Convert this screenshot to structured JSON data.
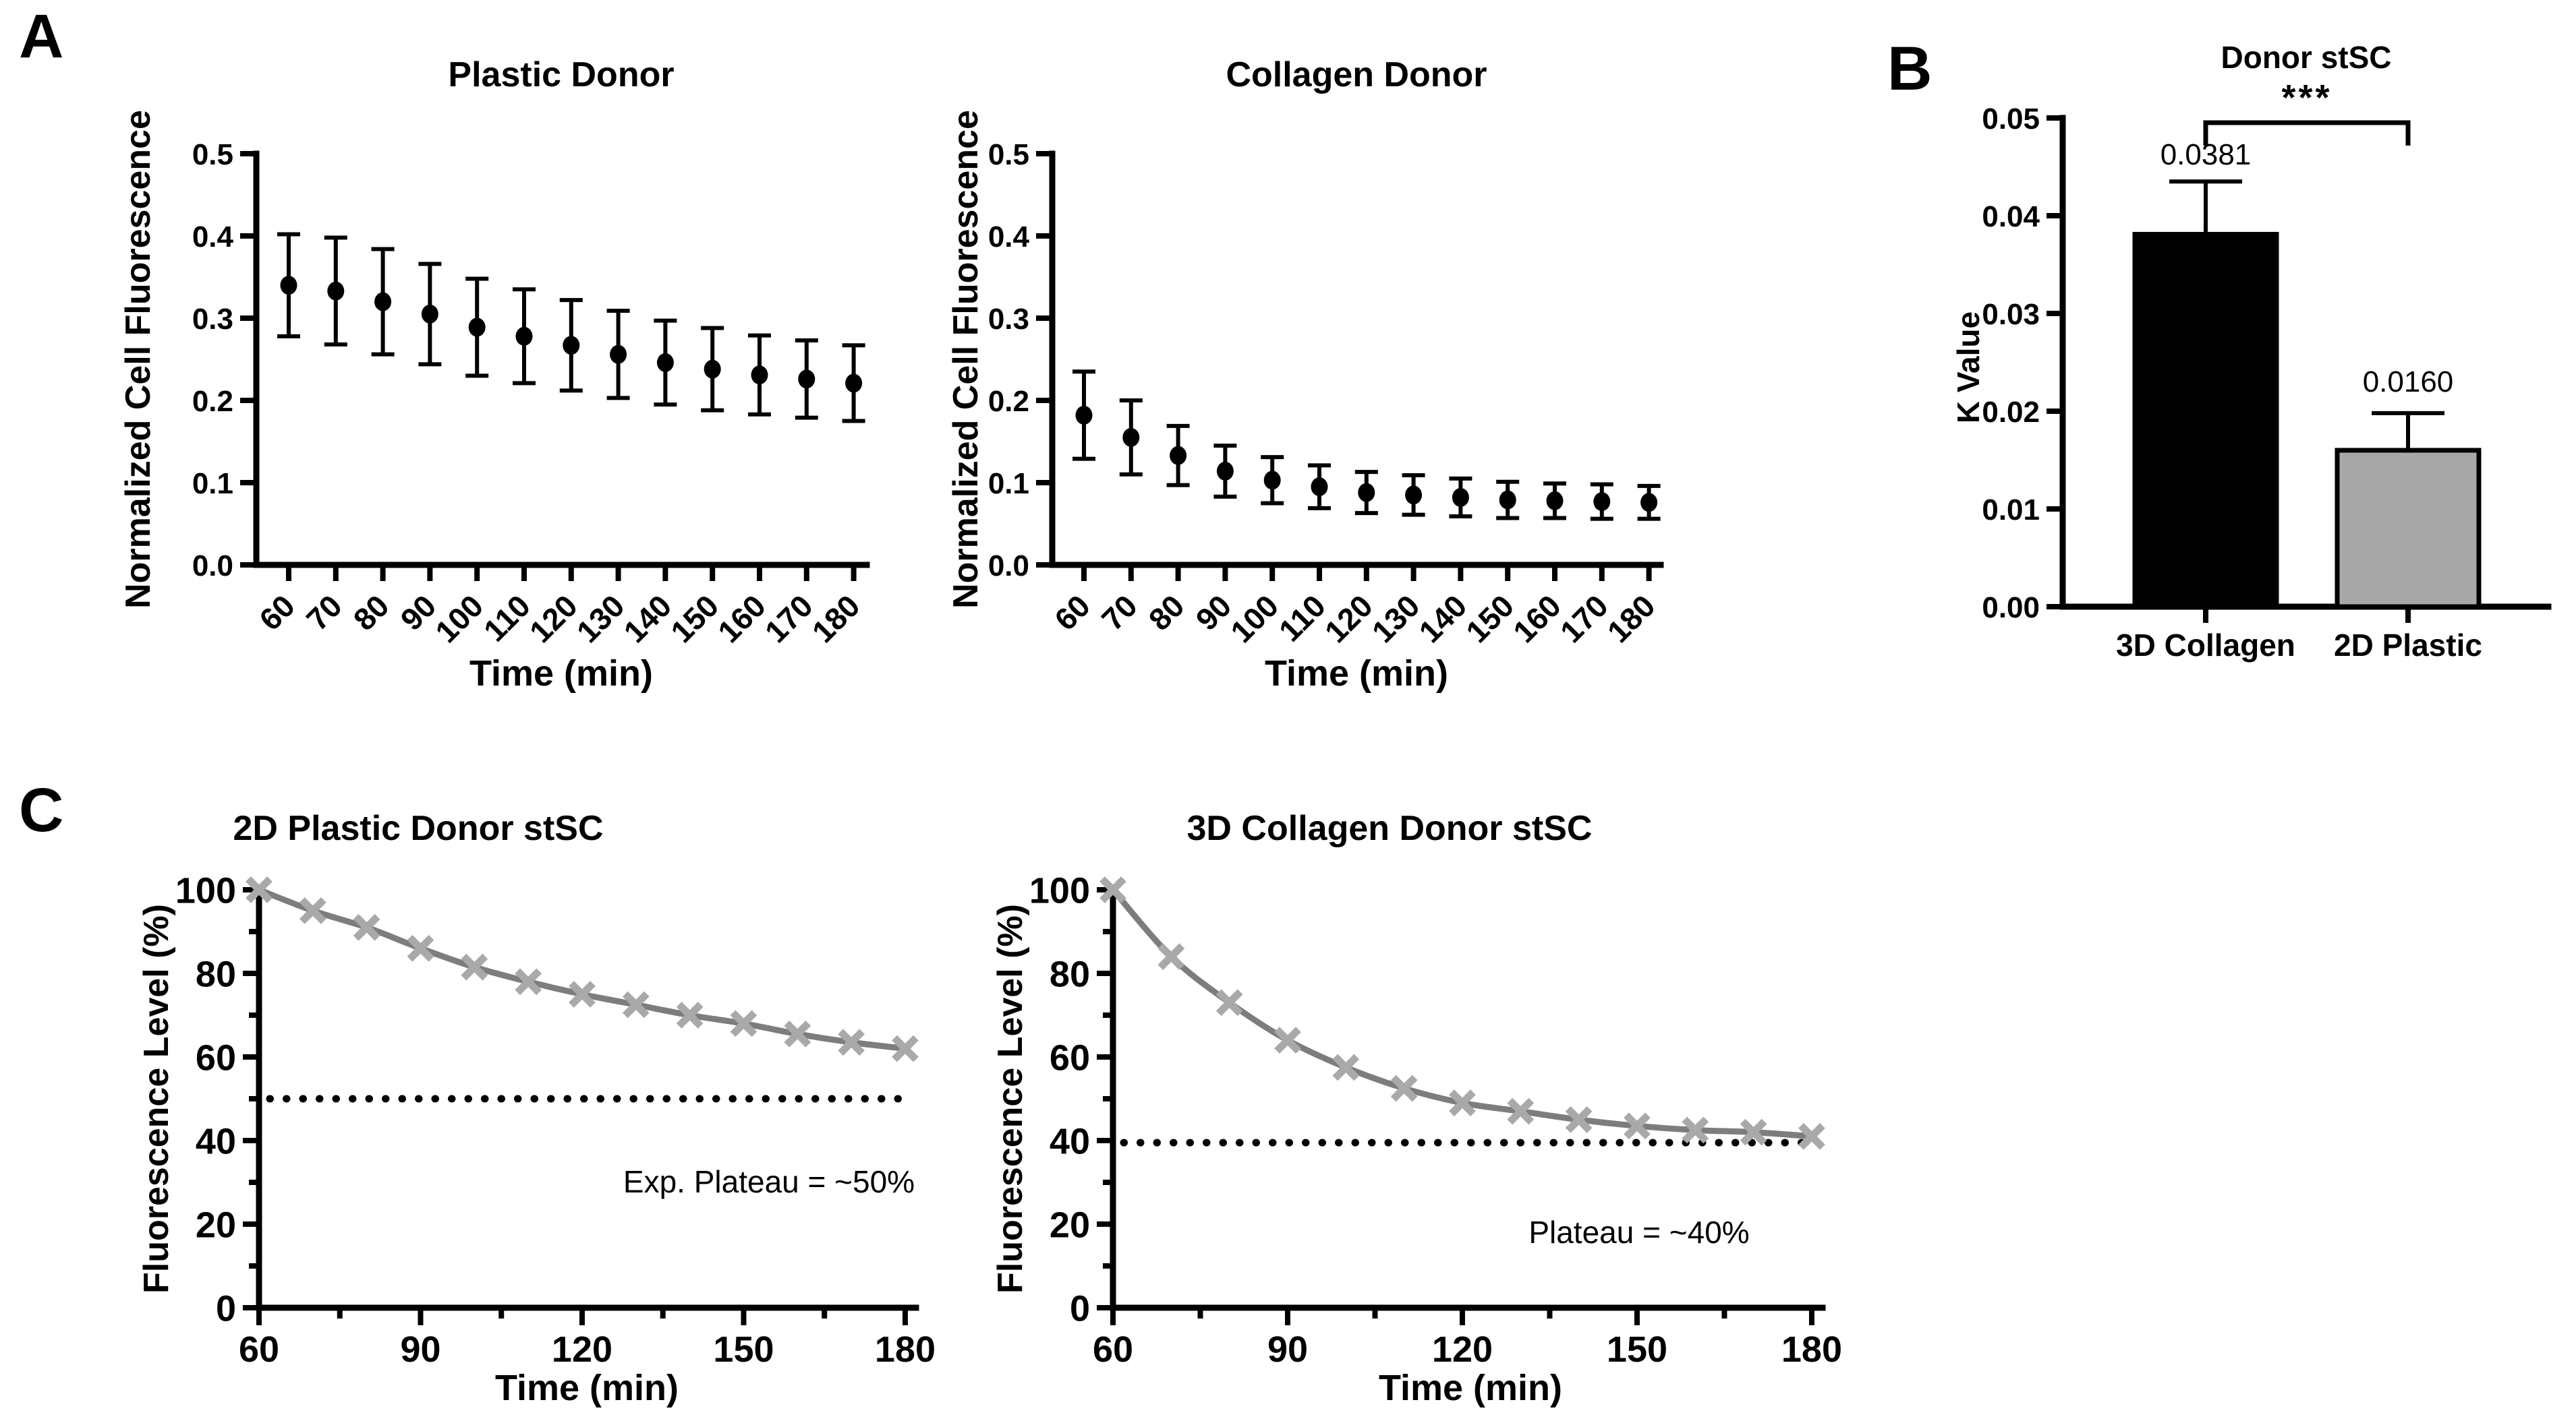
{
  "figure": {
    "panel_labels": {
      "a": "A",
      "b": "B",
      "c": "C"
    }
  },
  "chart_data": [
    {
      "id": "plastic_donor",
      "type": "scatter",
      "title": "Plastic Donor",
      "xlabel": "Time (min)",
      "ylabel": "Normalized Cell Fluorescence",
      "x": [
        60,
        70,
        80,
        90,
        100,
        110,
        120,
        130,
        140,
        150,
        160,
        170,
        180
      ],
      "y": [
        0.34,
        0.333,
        0.32,
        0.305,
        0.289,
        0.278,
        0.267,
        0.256,
        0.246,
        0.238,
        0.231,
        0.226,
        0.221
      ],
      "yerr": [
        0.062,
        0.065,
        0.064,
        0.061,
        0.059,
        0.057,
        0.055,
        0.053,
        0.051,
        0.05,
        0.048,
        0.047,
        0.046
      ],
      "ylim": [
        0.0,
        0.5
      ],
      "yticks": [
        0.0,
        0.1,
        0.2,
        0.3,
        0.4,
        0.5
      ],
      "ytick_labels": [
        "0.0",
        "0.1",
        "0.2",
        "0.3",
        "0.4",
        "0.5"
      ],
      "xtick_labels": [
        "60",
        "70",
        "80",
        "90",
        "100",
        "110",
        "120",
        "130",
        "140",
        "150",
        "160",
        "170",
        "180"
      ],
      "marker": "filled-circle",
      "color": "#000000"
    },
    {
      "id": "collagen_donor",
      "type": "scatter",
      "title": "Collagen Donor",
      "xlabel": "Time (min)",
      "ylabel": "Normalized Cell Fluorescence",
      "x": [
        60,
        70,
        80,
        90,
        100,
        110,
        120,
        130,
        140,
        150,
        160,
        170,
        180
      ],
      "y": [
        0.182,
        0.155,
        0.133,
        0.114,
        0.103,
        0.095,
        0.088,
        0.085,
        0.082,
        0.079,
        0.078,
        0.077,
        0.076
      ],
      "yerr": [
        0.053,
        0.045,
        0.036,
        0.031,
        0.028,
        0.026,
        0.025,
        0.024,
        0.023,
        0.022,
        0.021,
        0.021,
        0.02
      ],
      "ylim": [
        0.0,
        0.5
      ],
      "yticks": [
        0.0,
        0.1,
        0.2,
        0.3,
        0.4,
        0.5
      ],
      "ytick_labels": [
        "0.0",
        "0.1",
        "0.2",
        "0.3",
        "0.4",
        "0.5"
      ],
      "xtick_labels": [
        "60",
        "70",
        "80",
        "90",
        "100",
        "110",
        "120",
        "130",
        "140",
        "150",
        "160",
        "170",
        "180"
      ],
      "marker": "filled-circle",
      "color": "#000000"
    },
    {
      "id": "donor_stsc",
      "type": "bar",
      "title": "Donor stSC",
      "ylabel": "K Value",
      "categories": [
        "3D Collagen",
        "2D Plastic"
      ],
      "values": [
        0.0381,
        0.016
      ],
      "errors_upper": [
        0.0054,
        0.0038
      ],
      "value_labels": [
        "0.0381",
        "0.0160"
      ],
      "significance": "***",
      "bar_colors": [
        "#000000",
        "#a8a8a8"
      ],
      "ylim": [
        0.0,
        0.05
      ],
      "yticks": [
        0.0,
        0.01,
        0.02,
        0.03,
        0.04,
        0.05
      ],
      "ytick_labels": [
        "0.00",
        "0.01",
        "0.02",
        "0.03",
        "0.04",
        "0.05"
      ]
    },
    {
      "id": "plastic_decay",
      "type": "line",
      "title": "2D Plastic Donor stSC",
      "xlabel": "Time (min)",
      "ylabel": "Fluorescence Level (%)",
      "x": [
        60,
        70,
        80,
        90,
        100,
        110,
        120,
        130,
        140,
        150,
        160,
        170,
        180
      ],
      "y": [
        100,
        95,
        91,
        86,
        81.5,
        78,
        75,
        72.5,
        70,
        68,
        65.5,
        63.5,
        62
      ],
      "plateau_line": 50,
      "annotation": "Exp. Plateau = ~50%",
      "ylim": [
        0,
        100
      ],
      "yticks": [
        0,
        20,
        40,
        60,
        80,
        100
      ],
      "ytick_labels": [
        "0",
        "20",
        "40",
        "60",
        "80",
        "100"
      ],
      "yticks_minor": [
        10,
        30,
        50,
        70,
        90
      ],
      "xticks_major": [
        60,
        90,
        120,
        150,
        180
      ],
      "xtick_labels": [
        "60",
        "90",
        "120",
        "150",
        "180"
      ],
      "xticks_minor": [
        75,
        105,
        135,
        165
      ],
      "line_color": "#7d7d7d",
      "marker": "x",
      "marker_color": "#a9a9a9",
      "plateau_style": "dotted-black"
    },
    {
      "id": "collagen_decay",
      "type": "line",
      "title": "3D Collagen Donor stSC",
      "xlabel": "Time (min)",
      "ylabel": "Fluorescence Level (%)",
      "x": [
        60,
        70,
        80,
        90,
        100,
        110,
        120,
        130,
        140,
        150,
        160,
        170,
        180
      ],
      "y": [
        100,
        84,
        73,
        64,
        57.5,
        52.5,
        49,
        47,
        45,
        43.5,
        42.5,
        42,
        41
      ],
      "plateau_line": 39.5,
      "annotation": "Plateau = ~40%",
      "ylim": [
        0,
        100
      ],
      "yticks": [
        0,
        20,
        40,
        60,
        80,
        100
      ],
      "ytick_labels": [
        "0",
        "20",
        "40",
        "60",
        "80",
        "100"
      ],
      "yticks_minor": [
        10,
        30,
        50,
        70,
        90
      ],
      "xticks_major": [
        60,
        90,
        120,
        150,
        180
      ],
      "xtick_labels": [
        "60",
        "90",
        "120",
        "150",
        "180"
      ],
      "xticks_minor": [
        75,
        105,
        135,
        165
      ],
      "line_color": "#7d7d7d",
      "marker": "x",
      "marker_color": "#a9a9a9",
      "plateau_style": "dotted-black"
    }
  ]
}
